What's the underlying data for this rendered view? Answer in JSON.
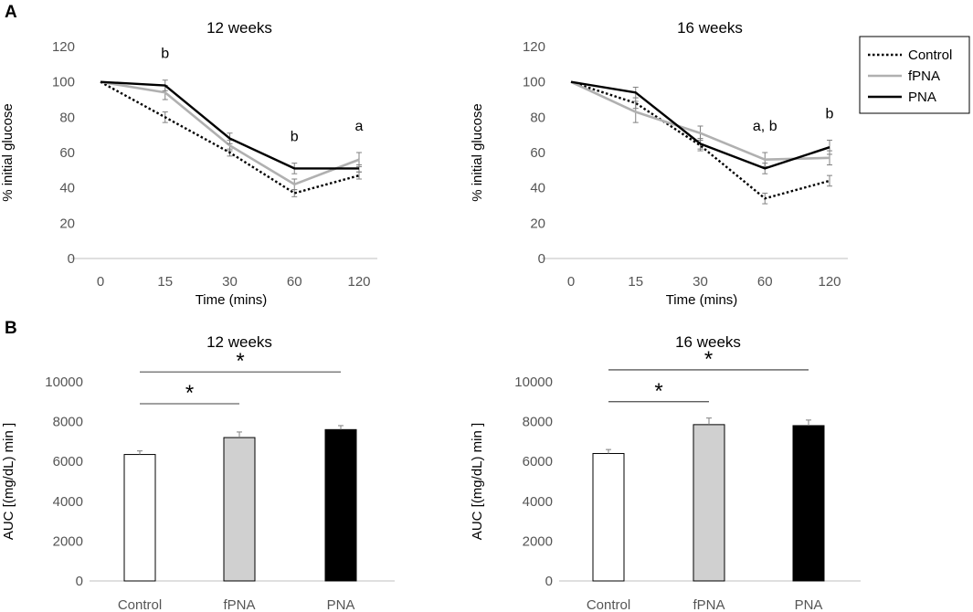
{
  "panels": {
    "a": "A",
    "b": "B"
  },
  "colors": {
    "control": "#000000",
    "fpna": "#b0b0b0",
    "pna": "#000000",
    "bar_control": "#ffffff",
    "bar_fpna": "#d0d0d0",
    "bar_pna": "#000000",
    "axis": "#bfbfbf",
    "tick": "#595959",
    "errorbar": "#808080"
  },
  "legend": {
    "position": "top-right",
    "entries": [
      "Control",
      "fPNA",
      "PNA"
    ]
  },
  "chart_data": [
    {
      "type": "line",
      "title": "12 weeks",
      "xlabel": "Time (mins)",
      "ylabel": "% initial glucose",
      "categories": [
        "0",
        "15",
        "30",
        "60",
        "120"
      ],
      "ylim": [
        0,
        120
      ],
      "yticks": [
        "0",
        "20",
        "40",
        "60",
        "80",
        "100",
        "120"
      ],
      "series": [
        {
          "name": "Control",
          "style": "dotted",
          "values": [
            100,
            80,
            60,
            37,
            47
          ],
          "errors": [
            0,
            3,
            2,
            2,
            2
          ]
        },
        {
          "name": "fPNA",
          "style": "solid-gray",
          "values": [
            100,
            94,
            64,
            42,
            56
          ],
          "errors": [
            0,
            4,
            3,
            3,
            4
          ]
        },
        {
          "name": "PNA",
          "style": "solid-black",
          "values": [
            100,
            98,
            68,
            51,
            51
          ],
          "errors": [
            0,
            3,
            3,
            3,
            2
          ]
        }
      ],
      "annotations": [
        {
          "category": "15",
          "text": "b"
        },
        {
          "category": "60",
          "text": "b"
        },
        {
          "category": "120",
          "text": "a"
        }
      ]
    },
    {
      "type": "line",
      "title": "16 weeks",
      "xlabel": "Time (mins)",
      "ylabel": "% initial glucose",
      "categories": [
        "0",
        "15",
        "30",
        "60",
        "120"
      ],
      "ylim": [
        0,
        120
      ],
      "yticks": [
        "0",
        "20",
        "40",
        "60",
        "80",
        "100",
        "120"
      ],
      "series": [
        {
          "name": "Control",
          "style": "dotted",
          "values": [
            100,
            88,
            64,
            34,
            44
          ],
          "errors": [
            0,
            3,
            3,
            3,
            3
          ]
        },
        {
          "name": "fPNA",
          "style": "solid-gray",
          "values": [
            100,
            83,
            71,
            56,
            57
          ],
          "errors": [
            0,
            6,
            4,
            4,
            4
          ]
        },
        {
          "name": "PNA",
          "style": "solid-black",
          "values": [
            100,
            94,
            65,
            51,
            63
          ],
          "errors": [
            0,
            3,
            3,
            3,
            4
          ]
        }
      ],
      "annotations": [
        {
          "category": "60",
          "text": "a, b"
        },
        {
          "category": "120",
          "text": "b"
        }
      ]
    },
    {
      "type": "bar",
      "title": "12 weeks",
      "ylabel": "AUC [(mg/dL) min ]",
      "categories": [
        "Control",
        "fPNA",
        "PNA"
      ],
      "values": [
        6350,
        7200,
        7600
      ],
      "errors": [
        180,
        280,
        200
      ],
      "ylim": [
        0,
        10000
      ],
      "yticks": [
        "0",
        "2000",
        "4000",
        "6000",
        "8000",
        "10000"
      ],
      "significance": [
        {
          "from": "Control",
          "to": "fPNA",
          "level": 8900,
          "text": "*"
        },
        {
          "from": "Control",
          "to": "PNA",
          "level": 10500,
          "text": "*"
        }
      ]
    },
    {
      "type": "bar",
      "title": "16 weeks",
      "ylabel": "AUC [(mg/dL) min ]",
      "categories": [
        "Control",
        "fPNA",
        "PNA"
      ],
      "values": [
        6400,
        7850,
        7800
      ],
      "errors": [
        200,
        330,
        280
      ],
      "ylim": [
        0,
        10000
      ],
      "yticks": [
        "0",
        "2000",
        "4000",
        "6000",
        "8000",
        "10000"
      ],
      "significance": [
        {
          "from": "Control",
          "to": "fPNA",
          "level": 9000,
          "text": "*"
        },
        {
          "from": "Control",
          "to": "PNA",
          "level": 10600,
          "text": "*"
        }
      ]
    }
  ]
}
